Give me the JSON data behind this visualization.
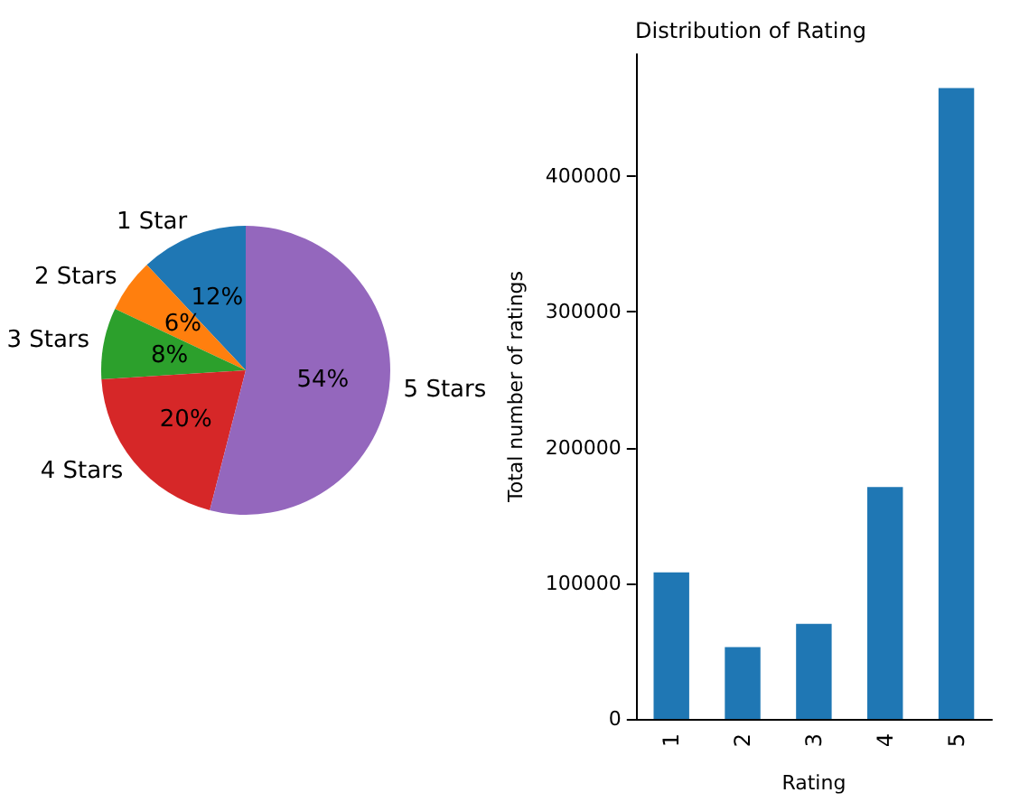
{
  "chart_data": [
    {
      "type": "pie",
      "categories": [
        "1 Star",
        "2 Stars",
        "3 Stars",
        "4 Stars",
        "5 Stars"
      ],
      "values": [
        12,
        6,
        8,
        20,
        54
      ],
      "colors": [
        "#1f77b4",
        "#ff7f0e",
        "#2ca02c",
        "#d62728",
        "#9467bd"
      ],
      "value_labels": [
        "12%",
        "6%",
        "8%",
        "20%",
        "54%"
      ]
    },
    {
      "type": "bar",
      "title": "Distribution of Rating",
      "xlabel": "Rating",
      "ylabel": "Total number of ratings",
      "categories": [
        "1",
        "2",
        "3",
        "4",
        "5"
      ],
      "values": [
        108000,
        53000,
        70000,
        171000,
        465000
      ],
      "color": "#1f77b4",
      "ylim": [
        0,
        490000
      ],
      "yticks": [
        0,
        100000,
        200000,
        300000,
        400000
      ],
      "grid": false
    }
  ]
}
